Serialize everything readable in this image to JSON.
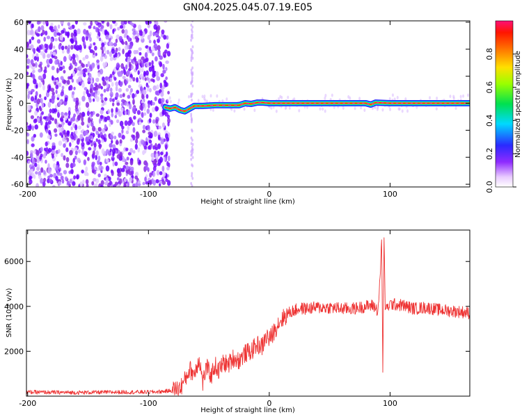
{
  "title": "GN04.2025.045.07.19.E05",
  "chart_data": [
    {
      "type": "heatmap",
      "xlabel": "Height of straight line (km)",
      "ylabel": "Frequency (Hz)",
      "xlim": [
        -201,
        166
      ],
      "ylim": [
        -62,
        61
      ],
      "xticks": [
        -200,
        -100,
        0,
        100
      ],
      "yticks": [
        -60,
        -40,
        -20,
        0,
        20,
        40,
        60
      ],
      "grid": false,
      "description_of_field": {
        "noise_region_x": [
          -201,
          -83
        ],
        "noise_spike_x": -64,
        "tone_start_x": -86,
        "tone_track": {
          "x": [
            -86,
            -82,
            -78,
            -74,
            -70,
            -66,
            -62,
            -55,
            -45,
            -35,
            -25,
            -20,
            -15,
            -10,
            -5,
            0,
            20,
            40,
            60,
            80,
            84,
            88,
            100,
            120,
            140,
            160,
            166
          ],
          "y": [
            -3,
            -4,
            -3,
            -5,
            -6,
            -4,
            -2,
            -2,
            -1.5,
            -1.5,
            -1.5,
            0,
            -0.5,
            0.5,
            0.5,
            0,
            0,
            0,
            0,
            0,
            -1,
            0.5,
            0,
            0,
            0,
            0,
            0
          ]
        }
      },
      "colorbar": {
        "label": "Normalized spectral amplitude",
        "ticks": [
          0.0,
          0.2,
          0.4,
          0.6,
          0.8
        ],
        "range": [
          0,
          1
        ]
      }
    },
    {
      "type": "line",
      "xlabel": "Height of straight line (km)",
      "ylabel": "SNR (10 * v/v)",
      "xlim": [
        -201,
        166
      ],
      "ylim": [
        0,
        7400
      ],
      "xticks": [
        -200,
        -100,
        0,
        100
      ],
      "yticks": [
        2000,
        4000,
        6000
      ],
      "color": "#ee3333",
      "series": [
        {
          "x": [
            -201,
            -180,
            -160,
            -140,
            -120,
            -100,
            -90,
            -80,
            -74,
            -70,
            -66,
            -62,
            -58,
            -55,
            -52,
            -48,
            -45,
            -42,
            -38,
            -34,
            -30,
            -25,
            -20,
            -15,
            -10,
            -6,
            -2,
            0,
            4,
            8,
            12,
            16,
            20,
            25,
            30,
            40,
            50,
            60,
            70,
            80,
            86,
            90,
            92,
            93,
            94,
            95,
            96,
            97,
            100,
            110,
            120,
            130,
            140,
            150,
            160,
            166
          ],
          "y": [
            180,
            170,
            160,
            170,
            180,
            180,
            200,
            250,
            350,
            700,
            1200,
            1000,
            1700,
            600,
            1300,
            900,
            1400,
            1100,
            1500,
            1400,
            1700,
            1600,
            1900,
            2000,
            2300,
            2200,
            2700,
            2500,
            2900,
            3300,
            3500,
            3700,
            3800,
            3900,
            3900,
            3950,
            3950,
            3900,
            3900,
            4000,
            4050,
            3800,
            5500,
            7100,
            1000,
            7200,
            4000,
            3900,
            4100,
            4050,
            3900,
            3950,
            3850,
            3800,
            3750,
            3700
          ]
        }
      ]
    }
  ]
}
